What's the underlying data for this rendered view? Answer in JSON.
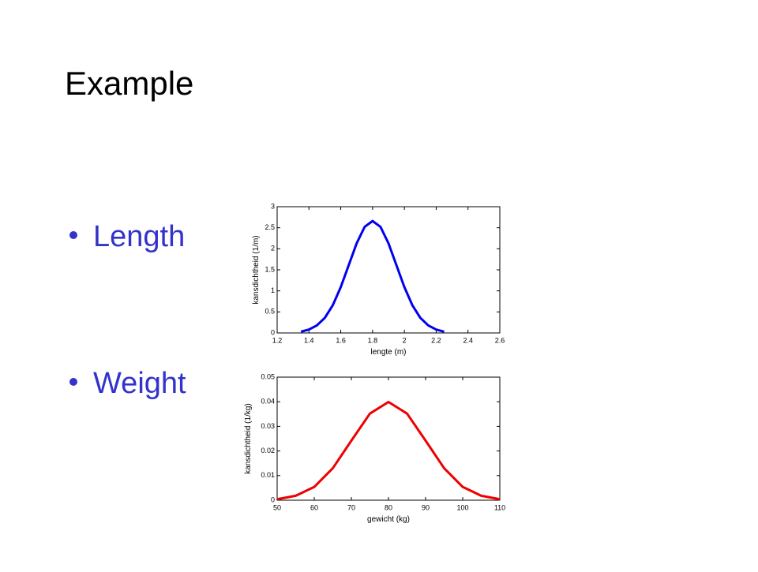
{
  "title": "Example",
  "bullets": [
    "Length",
    "Weight"
  ],
  "chart_data": [
    {
      "type": "line",
      "xlabel": "lengte (m)",
      "ylabel": "kansdichtheid (1/m)",
      "x": [
        1.35,
        1.4,
        1.45,
        1.5,
        1.55,
        1.6,
        1.65,
        1.7,
        1.75,
        1.8,
        1.85,
        1.9,
        1.95,
        2.0,
        2.05,
        2.1,
        2.15,
        2.2,
        2.25
      ],
      "values": [
        0.03,
        0.08,
        0.18,
        0.36,
        0.66,
        1.09,
        1.61,
        2.13,
        2.52,
        2.66,
        2.52,
        2.13,
        1.61,
        1.09,
        0.66,
        0.36,
        0.18,
        0.08,
        0.03
      ],
      "color": "#0000ee",
      "xlim": [
        1.2,
        2.6
      ],
      "xticks": [
        1.2,
        1.4,
        1.6,
        1.8,
        2,
        2.2,
        2.4,
        2.6
      ],
      "ylim": [
        0,
        3
      ],
      "yticks": [
        0,
        0.5,
        1,
        1.5,
        2,
        2.5,
        3
      ]
    },
    {
      "type": "line",
      "xlabel": "gewicht (kg)",
      "ylabel": "kansdichtheid (1/kg)",
      "x": [
        50,
        55,
        60,
        65,
        70,
        75,
        80,
        85,
        90,
        95,
        100,
        105,
        110
      ],
      "values": [
        0.0004,
        0.0018,
        0.0054,
        0.013,
        0.0242,
        0.0352,
        0.0399,
        0.0352,
        0.0242,
        0.013,
        0.0054,
        0.0018,
        0.0004
      ],
      "color": "#ee0000",
      "xlim": [
        50,
        110
      ],
      "xticks": [
        50,
        60,
        70,
        80,
        90,
        100,
        110
      ],
      "ylim": [
        0,
        0.05
      ],
      "yticks": [
        0,
        0.01,
        0.02,
        0.03,
        0.04,
        0.05
      ]
    }
  ]
}
